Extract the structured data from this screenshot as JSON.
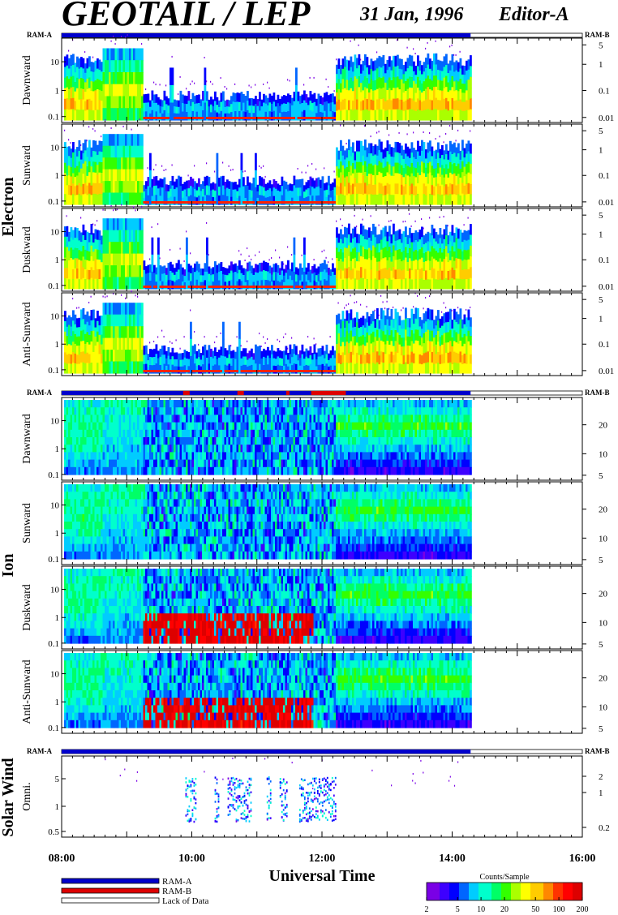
{
  "header": {
    "title": "GEOTAIL / LEP",
    "date": "31 Jan, 1996",
    "editor": "Editor-A"
  },
  "ram_labels": {
    "a": "RAM-A",
    "b": "RAM-B"
  },
  "colors": {
    "ram_a": "#0000cc",
    "ram_b": "#dd0000",
    "no_data": "#ffffff",
    "scale": [
      "#7a00e6",
      "#3d00ff",
      "#0000ff",
      "#0066ff",
      "#00ccff",
      "#00ffcc",
      "#00ff66",
      "#33ff00",
      "#aaff00",
      "#ffff00",
      "#ffcc00",
      "#ff8800",
      "#ff3300",
      "#ff0000",
      "#dd0000"
    ]
  },
  "chart_data": {
    "type": "heatmap",
    "x_axis": {
      "label": "Universal Time",
      "range": [
        "08:00",
        "16:00"
      ],
      "major_ticks": [
        "08:00",
        "10:00",
        "12:00",
        "14:00",
        "16:00"
      ],
      "data_end": "14:17"
    },
    "groups": [
      {
        "name": "Electron",
        "panels": [
          {
            "name": "Dawnward",
            "left_ticks": [
              "10",
              "1",
              "0.1"
            ],
            "right_ticks": [
              "5",
              "1",
              "0.1",
              "0.01"
            ]
          },
          {
            "name": "Sunward",
            "left_ticks": [
              "10",
              "1",
              "0.1"
            ],
            "right_ticks": [
              "5",
              "1",
              "0.1",
              "0.01"
            ]
          },
          {
            "name": "Duskward",
            "left_ticks": [
              "10",
              "1",
              "0.1"
            ],
            "right_ticks": [
              "5",
              "1",
              "0.1",
              "0.01"
            ]
          },
          {
            "name": "Anti-Sunward",
            "left_ticks": [
              "10",
              "1",
              "0.1"
            ],
            "right_ticks": [
              "5",
              "1",
              "0.1",
              "0.01"
            ]
          }
        ]
      },
      {
        "name": "Ion",
        "panels": [
          {
            "name": "Dawnward",
            "left_ticks": [
              "10",
              "1",
              "0.1"
            ],
            "right_ticks": [
              "20",
              "10",
              "5"
            ]
          },
          {
            "name": "Sunward",
            "left_ticks": [
              "10",
              "1",
              "0.1"
            ],
            "right_ticks": [
              "20",
              "10",
              "5"
            ]
          },
          {
            "name": "Duskward",
            "left_ticks": [
              "10",
              "1",
              "0.1"
            ],
            "right_ticks": [
              "20",
              "10",
              "5"
            ]
          },
          {
            "name": "Anti-Sunward",
            "left_ticks": [
              "10",
              "1",
              "0.1"
            ],
            "right_ticks": [
              "20",
              "10",
              "5"
            ]
          }
        ]
      },
      {
        "name": "Solar Wind",
        "panels": [
          {
            "name": "Omni.",
            "left_ticks": [
              "5",
              "1",
              "0.5"
            ],
            "right_ticks": [
              "2",
              "1",
              "0.2"
            ]
          }
        ]
      }
    ],
    "ram_mode_bars": {
      "ram_a_until": "14:17",
      "ram_b_intervals_ion": [
        [
          "09:52",
          "09:58"
        ],
        [
          "10:42",
          "10:48"
        ],
        [
          "11:27",
          "11:30"
        ],
        [
          "11:50",
          "12:22"
        ]
      ]
    },
    "colorbar": {
      "title": "Counts/Sample",
      "ticks": [
        "2",
        "5",
        "10",
        "20",
        "50",
        "100",
        "200"
      ],
      "min": 2,
      "max": 200,
      "scale": "log"
    }
  },
  "legend": [
    {
      "label": "RAM-A",
      "color": "#0000cc"
    },
    {
      "label": "RAM-B",
      "color": "#dd0000"
    },
    {
      "label": "Lack of Data",
      "color": "#ffffff"
    }
  ]
}
